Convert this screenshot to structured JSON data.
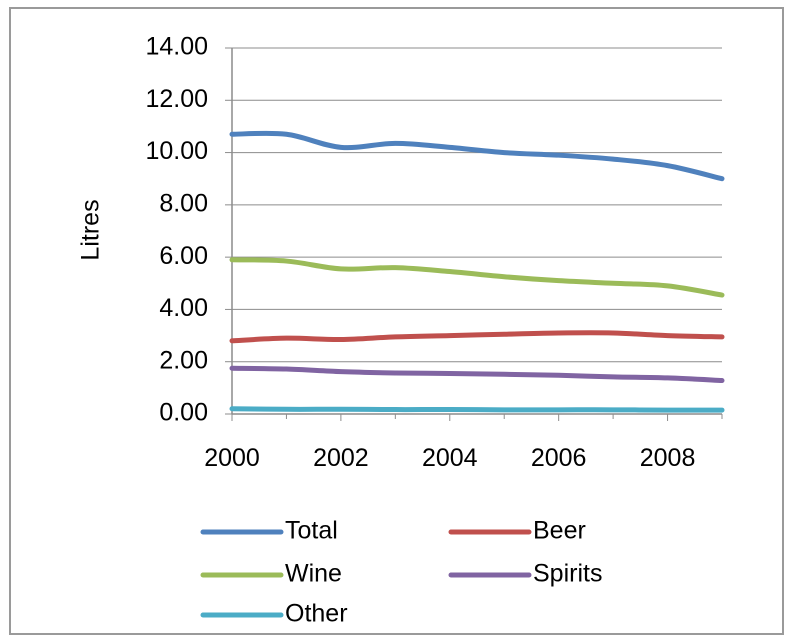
{
  "chart_data": {
    "type": "line",
    "title": "",
    "xlabel": "",
    "ylabel": "Litres",
    "x": [
      2000,
      2001,
      2002,
      2003,
      2004,
      2005,
      2006,
      2007,
      2008,
      2009
    ],
    "xlim": [
      2000,
      2009
    ],
    "ylim": [
      0,
      14
    ],
    "x_ticks": [
      2000,
      2002,
      2004,
      2006,
      2008
    ],
    "x_tick_labels": [
      "2000",
      "2002",
      "2004",
      "2006",
      "2008"
    ],
    "y_ticks": [
      0,
      2,
      4,
      6,
      8,
      10,
      12,
      14
    ],
    "y_tick_labels": [
      "0.00",
      "2.00",
      "4.00",
      "6.00",
      "8.00",
      "10.00",
      "12.00",
      "14.00"
    ],
    "grid": true,
    "legend_position": "bottom",
    "series": [
      {
        "name": "Total",
        "color": "#4F81BD",
        "values": [
          10.7,
          10.7,
          10.2,
          10.35,
          10.2,
          10.0,
          9.9,
          9.75,
          9.5,
          9.0
        ]
      },
      {
        "name": "Beer",
        "color": "#C0504D",
        "values": [
          2.8,
          2.9,
          2.85,
          2.95,
          3.0,
          3.05,
          3.1,
          3.1,
          3.0,
          2.95
        ]
      },
      {
        "name": "Wine",
        "color": "#9BBB59",
        "values": [
          5.9,
          5.85,
          5.55,
          5.6,
          5.45,
          5.25,
          5.1,
          5.0,
          4.9,
          4.55
        ]
      },
      {
        "name": "Spirits",
        "color": "#8064A2",
        "values": [
          1.75,
          1.72,
          1.62,
          1.57,
          1.55,
          1.52,
          1.48,
          1.42,
          1.38,
          1.28
        ]
      },
      {
        "name": "Other",
        "color": "#4BACC6",
        "values": [
          0.2,
          0.18,
          0.18,
          0.17,
          0.17,
          0.16,
          0.16,
          0.16,
          0.15,
          0.15
        ]
      }
    ]
  }
}
